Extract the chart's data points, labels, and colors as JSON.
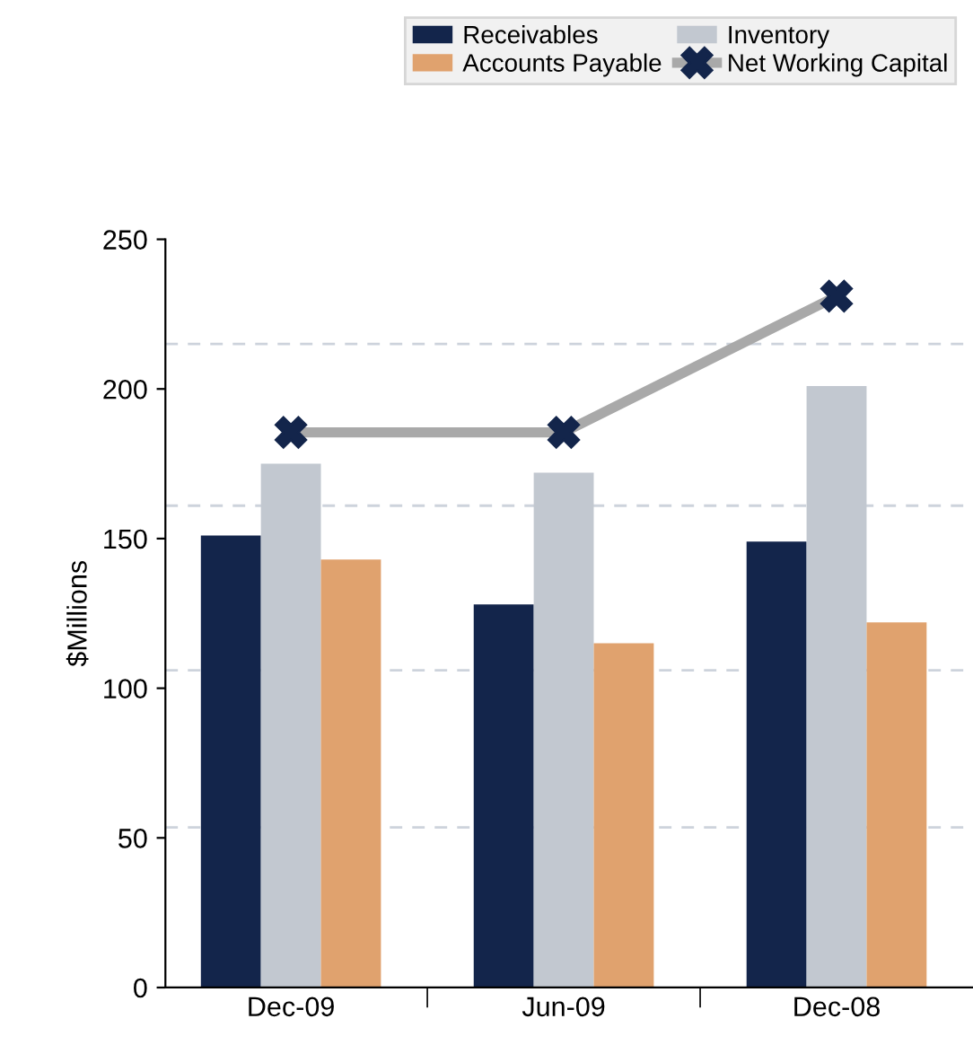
{
  "chart_data": {
    "type": "bar",
    "ylabel": "$Millions",
    "categories": [
      "Dec-09",
      "Jun-09",
      "Dec-08"
    ],
    "series": [
      {
        "name": "Receivables",
        "color": "#13254b",
        "values": [
          151,
          128,
          149
        ]
      },
      {
        "name": "Inventory",
        "color": "#c2c8d0",
        "values": [
          175,
          172,
          201
        ]
      },
      {
        "name": "Accounts Payable",
        "color": "#e0a26e",
        "values": [
          143,
          115,
          122
        ]
      },
      {
        "name": "Net Working Capital",
        "type": "line",
        "color": "#a9a9a9",
        "colors": [
          "#13254b",
          "#13254b",
          "#13254b"
        ],
        "marker": "cross",
        "values": [
          185.5,
          185.5,
          231
        ]
      }
    ],
    "ylim": [
      0,
      250
    ],
    "yticks": [
      0,
      50,
      100,
      150,
      200,
      250
    ],
    "ref_lines": [
      {
        "axis": "y",
        "value": 53.5,
        "color": "#cdd3dc",
        "line_style": "dashed"
      },
      {
        "axis": "y",
        "value": 106,
        "color": "#cdd3dc",
        "line_style": "dashed"
      },
      {
        "axis": "y",
        "value": 161,
        "color": "#cdd3dc",
        "line_style": "dashed"
      },
      {
        "axis": "y",
        "value": 215,
        "color": "#cdd3dc",
        "line_style": "dashed"
      }
    ],
    "legend": "top right",
    "grid": false
  }
}
